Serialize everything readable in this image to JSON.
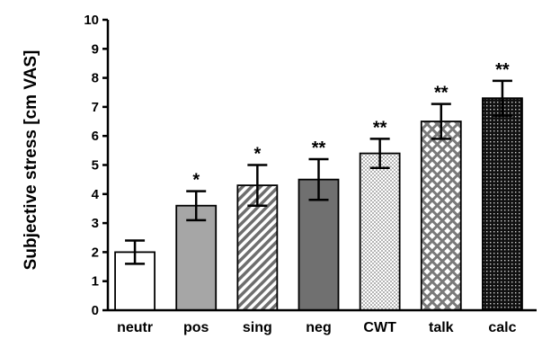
{
  "chart_data": {
    "type": "bar",
    "ylabel": "Subjective stress [cm VAS]",
    "xlabel": "",
    "ylim": [
      0,
      10
    ],
    "yticks": [
      0,
      1,
      2,
      3,
      4,
      5,
      6,
      7,
      8,
      9,
      10
    ],
    "grid": false,
    "bars": [
      {
        "category": "neutr",
        "value": 2.0,
        "error": 0.4,
        "significance": "",
        "fill": "white"
      },
      {
        "category": "pos",
        "value": 3.6,
        "error": 0.5,
        "significance": "*",
        "fill": "light-gray"
      },
      {
        "category": "sing",
        "value": 4.3,
        "error": 0.7,
        "significance": "*",
        "fill": "diagonal-hatch"
      },
      {
        "category": "neg",
        "value": 4.5,
        "error": 0.7,
        "significance": "**",
        "fill": "dark-gray"
      },
      {
        "category": "CWT",
        "value": 5.4,
        "error": 0.5,
        "significance": "**",
        "fill": "fine-crosshatch"
      },
      {
        "category": "talk",
        "value": 6.5,
        "error": 0.6,
        "significance": "**",
        "fill": "coarse-crosshatch"
      },
      {
        "category": "calc",
        "value": 7.3,
        "error": 0.6,
        "significance": "**",
        "fill": "dark-dotted"
      }
    ]
  }
}
